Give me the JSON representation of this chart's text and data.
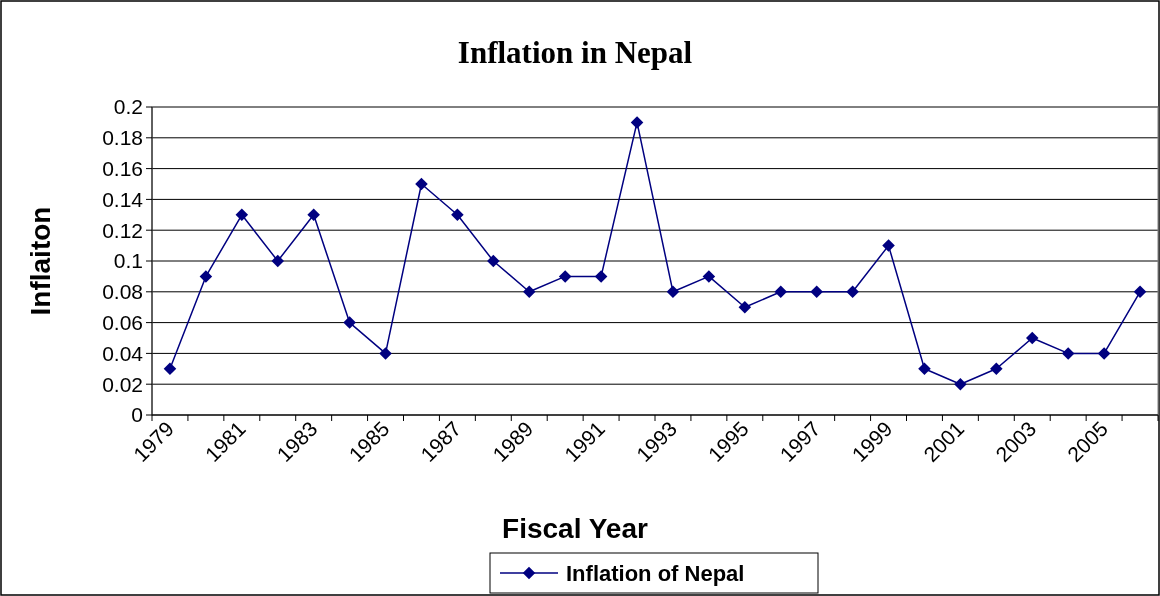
{
  "chart_data": {
    "type": "line",
    "title": "Inflation in Nepal",
    "xlabel": "Fiscal Year",
    "ylabel": "Inflaiton",
    "categories": [
      "1979",
      null,
      "1981",
      null,
      "1983",
      null,
      "1985",
      null,
      "1987",
      null,
      "1989",
      null,
      "1991",
      null,
      "1993",
      null,
      "1995",
      null,
      "1997",
      null,
      "1999",
      null,
      "2001",
      null,
      "2003",
      null,
      "2005",
      null
    ],
    "series": [
      {
        "name": "Inflation of Nepal",
        "color": "#000080",
        "values": [
          0.03,
          0.09,
          0.13,
          0.1,
          0.13,
          0.06,
          0.04,
          0.15,
          0.13,
          0.1,
          0.08,
          0.09,
          0.09,
          0.19,
          0.08,
          0.09,
          0.07,
          0.08,
          0.08,
          0.08,
          0.11,
          0.03,
          0.02,
          0.03,
          0.05,
          0.04,
          0.04,
          0.08
        ]
      }
    ],
    "ylim": [
      0,
      0.2
    ],
    "yticks": [
      0,
      0.02,
      0.04,
      0.06,
      0.08,
      0.1,
      0.12,
      0.14,
      0.16,
      0.18,
      0.2
    ],
    "grid": "y",
    "legend": "bottom",
    "marker": "diamond",
    "line_style": "solid"
  }
}
